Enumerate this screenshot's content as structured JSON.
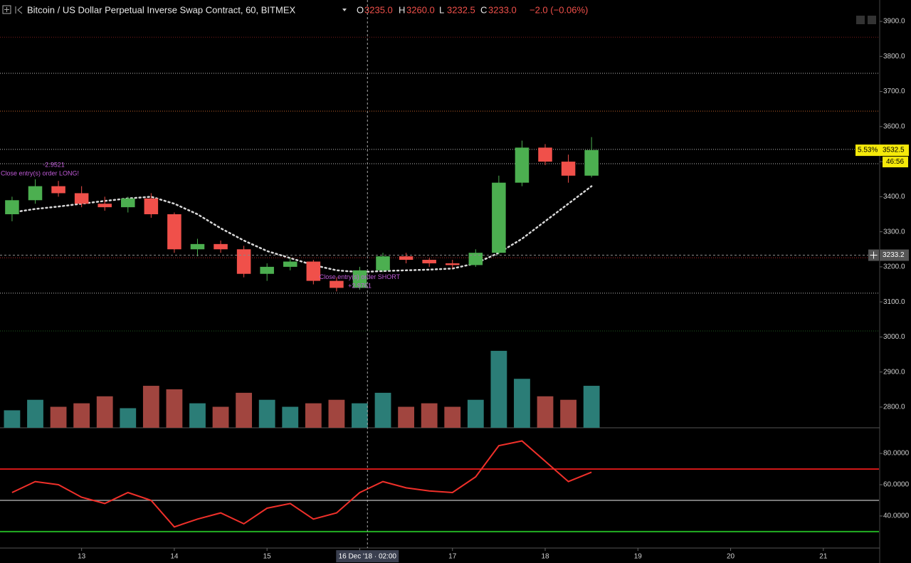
{
  "header": {
    "title": "Bitcoin / US Dollar Perpetual Inverse Swap Contract, 60, BITMEX",
    "ohlc": [
      {
        "label": "O",
        "value": "3235.0"
      },
      {
        "label": "H",
        "value": "3260.0"
      },
      {
        "label": "L",
        "value": "3232.5"
      },
      {
        "label": "C",
        "value": "3233.0"
      }
    ],
    "change": "−2.0 (−0.06%)"
  },
  "chart_data": [
    {
      "type": "candlestick",
      "x": [
        12.25,
        12.5,
        12.75,
        13,
        13.25,
        13.5,
        13.75,
        14,
        14.25,
        14.5,
        14.75,
        15,
        15.25,
        15.5,
        15.75,
        16,
        16.25,
        16.5,
        16.75,
        17,
        17.25,
        17.5,
        17.75,
        18,
        18.25,
        18.5
      ],
      "open": [
        3350,
        3390,
        3430,
        3410,
        3380,
        3370,
        3395,
        3350,
        3250,
        3265,
        3250,
        3180,
        3200,
        3215,
        3160,
        3140,
        3190,
        3230,
        3220,
        3210,
        3205,
        3240,
        3440,
        3540,
        3500,
        3460
      ],
      "high": [
        3400,
        3450,
        3445,
        3430,
        3400,
        3400,
        3410,
        3355,
        3280,
        3275,
        3260,
        3210,
        3225,
        3220,
        3170,
        3200,
        3240,
        3240,
        3225,
        3220,
        3250,
        3460,
        3560,
        3550,
        3520,
        3570
      ],
      "low": [
        3330,
        3380,
        3400,
        3370,
        3360,
        3355,
        3340,
        3240,
        3230,
        3240,
        3170,
        3160,
        3190,
        3150,
        3130,
        3135,
        3185,
        3210,
        3200,
        3195,
        3200,
        3235,
        3430,
        3490,
        3440,
        3455
      ],
      "close": [
        3390,
        3430,
        3410,
        3380,
        3370,
        3395,
        3350,
        3250,
        3265,
        3250,
        3180,
        3200,
        3215,
        3160,
        3140,
        3190,
        3230,
        3220,
        3210,
        3205,
        3240,
        3440,
        3540,
        3500,
        3460,
        3533
      ],
      "up_color": "#4caf50",
      "down_color": "#f0504a",
      "overlay": {
        "values": [
          3355,
          3365,
          3372,
          3380,
          3388,
          3395,
          3400,
          3380,
          3350,
          3310,
          3275,
          3245,
          3225,
          3205,
          3190,
          3185,
          3188,
          3190,
          3192,
          3195,
          3210,
          3240,
          3280,
          3330,
          3380,
          3430
        ],
        "color": "#d8d8d8"
      },
      "hlines": [
        {
          "value": 3855,
          "color": "#7a1c1c"
        },
        {
          "value": 3752,
          "color": "#bbbbbb"
        },
        {
          "value": 3644,
          "color": "#c0622a"
        },
        {
          "value": 3535,
          "color": "#bbbbbb"
        },
        {
          "value": 3494,
          "color": "#bbbbbb"
        },
        {
          "value": 3226,
          "color": "#b02020"
        },
        {
          "value": 3125,
          "color": "#bbbbbb"
        },
        {
          "value": 3017,
          "color": "#1e5c1e"
        }
      ],
      "annotations": [
        {
          "text": "Close entry(s) order LONG!",
          "x": 12.55,
          "y": 3465
        },
        {
          "text": "-2.9521",
          "x": 12.7,
          "y": 3490
        },
        {
          "text": "Close entry(s) order SHORT",
          "x": 16.0,
          "y": 3170
        },
        {
          "text": "+2.9761",
          "x": 16.0,
          "y": 3145
        }
      ],
      "xlim": [
        12.12,
        21.6
      ],
      "xticks": [
        13,
        14,
        15,
        16,
        17,
        18,
        19,
        20,
        21
      ],
      "ylim": [
        2741,
        3961
      ],
      "yticks": [
        {
          "value": 2800,
          "label": "2800.0"
        },
        {
          "value": 2900,
          "label": "2900.0"
        },
        {
          "value": 3000,
          "label": "3000.0"
        },
        {
          "value": 3100,
          "label": "3100.0"
        },
        {
          "value": 3200,
          "label": "3200.0"
        },
        {
          "value": 3300,
          "label": "3300.0"
        },
        {
          "value": 3400,
          "label": "3400.0"
        },
        {
          "value": 3500,
          "label": "3500.0"
        },
        {
          "value": 3600,
          "label": "3600.0"
        },
        {
          "value": 3700,
          "label": "3700.0"
        },
        {
          "value": 3800,
          "label": "3800.0"
        },
        {
          "value": 3900,
          "label": "3900.0"
        }
      ],
      "last_price": {
        "value": 3532.5,
        "label": "3532.5"
      },
      "last_change": "5.53%",
      "countdown": "46:56",
      "crosshair_y": {
        "value": 3233.2,
        "label": "3233.2"
      },
      "crosshair_x": {
        "value": 16.083,
        "label": "16 Dec '18 · 02:00"
      }
    },
    {
      "type": "bar",
      "values": [
        25,
        40,
        30,
        35,
        45,
        28,
        60,
        55,
        35,
        30,
        50,
        40,
        30,
        35,
        40,
        35,
        50,
        30,
        35,
        30,
        40,
        110,
        70,
        45,
        40,
        60
      ],
      "colors": [
        "#2b7d77",
        "#2b7d77",
        "#a1453f",
        "#a1453f",
        "#a1453f",
        "#2b7d77",
        "#a1453f",
        "#a1453f",
        "#2b7d77",
        "#a1453f",
        "#a1453f",
        "#2b7d77",
        "#2b7d77",
        "#a1453f",
        "#a1453f",
        "#2b7d77",
        "#2b7d77",
        "#a1453f",
        "#a1453f",
        "#a1453f",
        "#2b7d77",
        "#2b7d77",
        "#2b7d77",
        "#a1453f",
        "#a1453f",
        "#2b7d77"
      ],
      "ylim": [
        0,
        115
      ]
    },
    {
      "type": "line",
      "values": [
        55,
        62,
        60,
        52,
        48,
        55,
        50,
        33,
        38,
        42,
        35,
        45,
        48,
        38,
        42,
        55,
        62,
        58,
        56,
        55,
        65,
        85,
        88,
        75,
        62,
        68
      ],
      "color": "#f0302a",
      "hlines": [
        {
          "value": 70,
          "color": "#d01818"
        },
        {
          "value": 50,
          "color": "#777777"
        },
        {
          "value": 30,
          "color": "#22b022"
        }
      ],
      "ylim": [
        19.5,
        95.5
      ],
      "yticks": [
        {
          "value": 40,
          "label": "40.0000"
        },
        {
          "value": 60,
          "label": "60.0000"
        },
        {
          "value": 80,
          "label": "80.0000"
        }
      ]
    }
  ]
}
